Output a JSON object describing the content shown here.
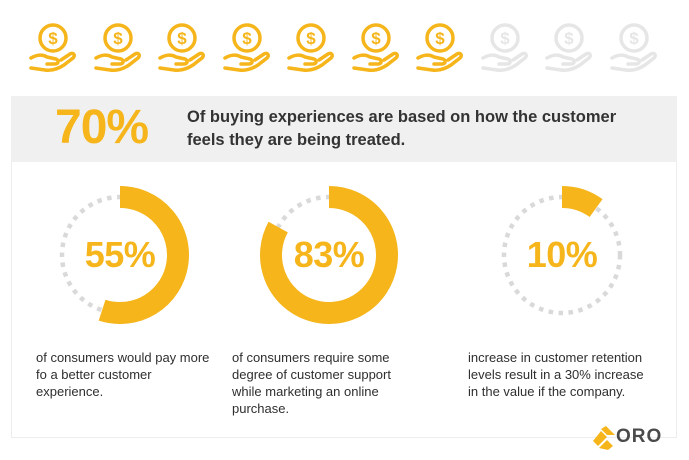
{
  "icons": {
    "name": "hand-holding-dollar-icon",
    "total": 10,
    "active": 7,
    "active_color": "#f5b51b",
    "inactive_color": "#e6e6e6"
  },
  "banner": {
    "percent": "70%",
    "text": "Of buying experiences are based on how the customer feels they are being treated."
  },
  "stats": [
    {
      "value": "55%",
      "fraction": 0.55,
      "description": "of consumers would pay more fo a better customer experience."
    },
    {
      "value": "83%",
      "fraction": 0.83,
      "description": "of consumers require some degree of customer support while marketing an online purchase."
    },
    {
      "value": "10%",
      "fraction": 0.1,
      "description": "increase in customer retention levels result in a 30% increase in the value if the company."
    }
  ],
  "colors": {
    "accent": "#f5b51b",
    "track": "#d9d9d9",
    "banner_bg": "#f0f0f0",
    "text": "#333333"
  },
  "logo": {
    "text": "ORO"
  }
}
